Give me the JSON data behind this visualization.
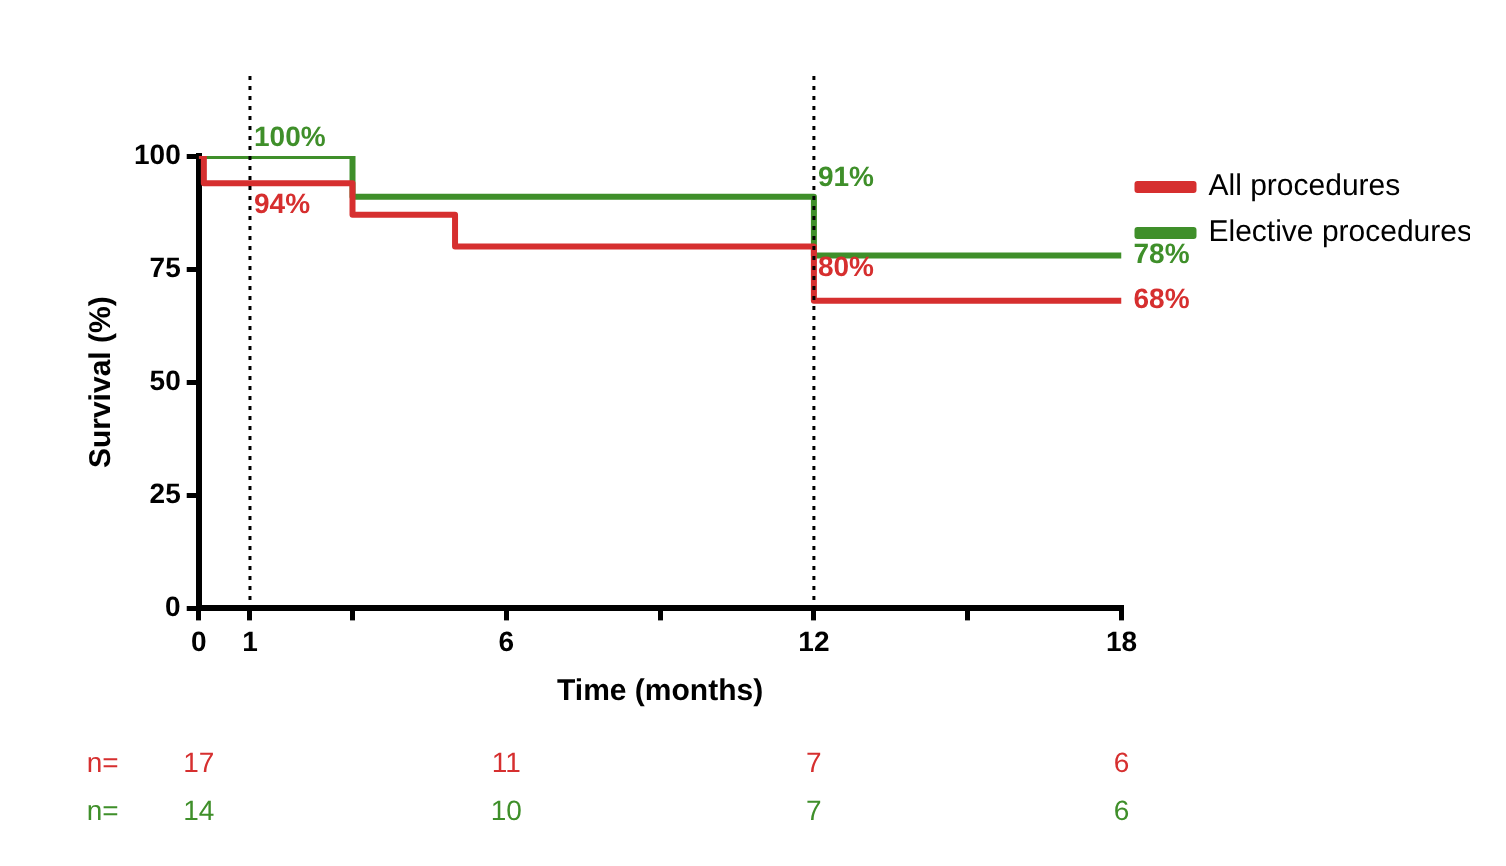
{
  "chart_data": {
    "type": "step",
    "xlabel": "Time (months)",
    "ylabel": "Survival (%)",
    "xlim": [
      0,
      18
    ],
    "xticks": [
      0,
      1,
      {
        "value": 3,
        "label": null
      },
      6,
      {
        "value": 9,
        "label": null
      },
      12,
      {
        "value": 15,
        "label": null
      },
      18
    ],
    "ylim": [
      0,
      100
    ],
    "yticks": [
      0,
      25,
      50,
      75,
      100
    ],
    "grid": false,
    "legend": "top right",
    "marker": "none",
    "line_style": "solid",
    "series": [
      {
        "name": "All procedures",
        "color": "#d62f2f",
        "x": [
          0,
          0.1,
          3,
          5,
          12,
          18
        ],
        "values": [
          100,
          94,
          87,
          80,
          68,
          68
        ]
      },
      {
        "name": "Elective procedures",
        "color": "#3f8f2a",
        "x": [
          0,
          3,
          12,
          18
        ],
        "values": [
          100,
          91,
          78,
          78
        ]
      }
    ],
    "ref_lines": [
      {
        "axis": "x",
        "value": 1,
        "color": "#000000",
        "line_style": "dotted"
      },
      {
        "axis": "x",
        "value": 12,
        "color": "#000000",
        "line_style": "dotted"
      }
    ],
    "annotations": [
      {
        "text": "100%",
        "x": 1,
        "y": 100
      },
      {
        "text": "94%",
        "x": 1,
        "y": 94
      },
      {
        "text": "91%",
        "x": 12,
        "y": 91
      },
      {
        "text": "80%",
        "x": 12,
        "y": 80
      },
      {
        "text": "78%",
        "x": 18,
        "y": 78
      },
      {
        "text": "68%",
        "x": 18,
        "y": 68
      },
      "n=",
      "17",
      "11",
      "7",
      "6",
      "n=",
      "14",
      "10",
      "7",
      "6"
    ]
  }
}
